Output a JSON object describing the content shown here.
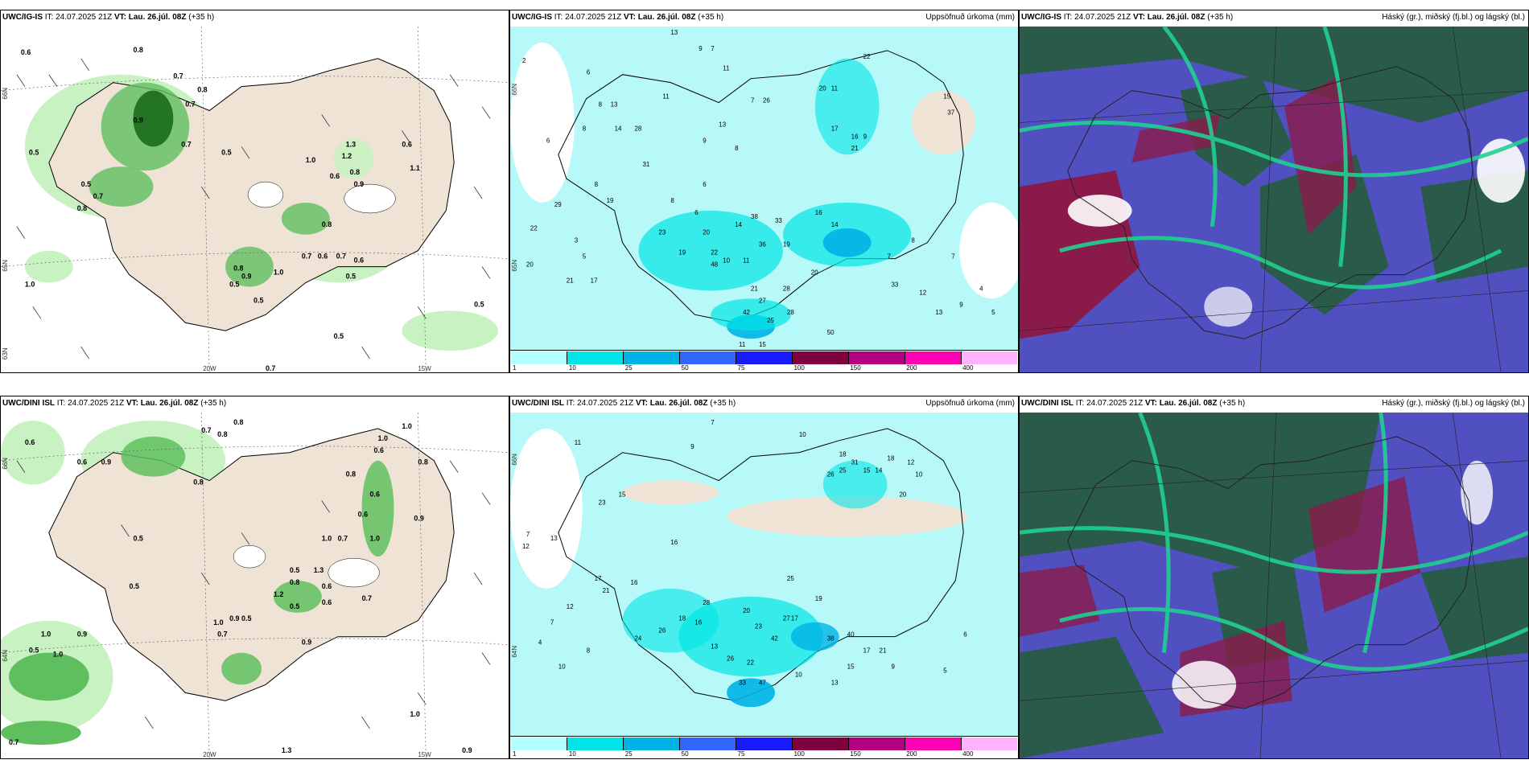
{
  "panels": {
    "top_left": {
      "model": "UWC/IG-IS",
      "it_label": "IT:",
      "it_value": "24.07.2025 21Z",
      "vt_label": "VT:",
      "vt_value": "Lau. 26.júl. 08Z",
      "lead": "(+35 h)",
      "lat_labels": [
        "66N",
        "65N",
        "63N"
      ],
      "lon_labels": [
        "20W",
        "15W"
      ],
      "values": [
        "0.6",
        "0.8",
        "0.7",
        "0.7",
        "0.8",
        "0.5",
        "0.9",
        "0.7",
        "0.5",
        "0.5",
        "0.7",
        "0.8",
        "1.0",
        "1.3",
        "1.2",
        "0.6",
        "0.8",
        "0.9",
        "0.6",
        "1.1",
        "0.8",
        "0.7",
        "0.6",
        "0.7",
        "0.6",
        "0.5",
        "0.8",
        "0.9",
        "1.0",
        "0.5",
        "1.0",
        "0.5",
        "0.5",
        "0.7",
        "0.5"
      ]
    },
    "top_mid": {
      "model": "UWC/IG-IS",
      "it_label": "IT:",
      "it_value": "24.07.2025 21Z",
      "vt_label": "VT:",
      "vt_value": "Lau. 26.júl. 08Z",
      "lead": "(+35 h)",
      "right_title": "Uppsöfnuð úrkoma (mm)",
      "lat_labels": [
        "66N",
        "65N"
      ],
      "numbers": [
        "13",
        "2",
        "9",
        "7",
        "6",
        "11",
        "22",
        "6",
        "8",
        "13",
        "8",
        "14",
        "11",
        "8",
        "19",
        "13",
        "9",
        "8",
        "7",
        "26",
        "28",
        "31",
        "20",
        "11",
        "17",
        "16",
        "9",
        "21",
        "15",
        "37",
        "38",
        "14",
        "6",
        "8",
        "20",
        "23",
        "19",
        "22",
        "11",
        "10",
        "33",
        "19",
        "16",
        "14",
        "48",
        "36",
        "20",
        "21",
        "28",
        "27",
        "42",
        "25",
        "50",
        "28",
        "33",
        "11",
        "15",
        "29",
        "22",
        "17",
        "20",
        "21",
        "3",
        "5",
        "12",
        "7",
        "4",
        "5",
        "13",
        "9",
        "8",
        "7",
        "6"
      ]
    },
    "top_right": {
      "model": "UWC/IG-IS",
      "it_label": "IT:",
      "it_value": "24.07.2025 21Z",
      "vt_label": "VT:",
      "vt_value": "Lau. 26.júl. 08Z",
      "lead": "(+35 h)",
      "right_title": "Háský (gr.), miðský (fj.bl.) og lágský (bl.)"
    },
    "bottom_left": {
      "model": "UWC/DINI ISL",
      "it_label": "IT:",
      "it_value": "24.07.2025 21Z",
      "vt_label": "VT:",
      "vt_value": "Lau. 26.júl. 08Z",
      "lead": "(+35 h)",
      "lat_labels": [
        "66N",
        "64N"
      ],
      "lon_labels": [
        "20W",
        "15W"
      ],
      "values": [
        "0.6",
        "0.7",
        "0.8",
        "0.8",
        "0.6",
        "0.9",
        "0.8",
        "1.0",
        "0.6",
        "1.0",
        "0.8",
        "0.8",
        "0.6",
        "1.0",
        "0.5",
        "0.9",
        "0.6",
        "0.7",
        "1.0",
        "0.5",
        "0.5",
        "1.3",
        "0.8",
        "0.6",
        "0.7",
        "0.6",
        "1.2",
        "0.5",
        "1.0",
        "0.9",
        "0.5",
        "0.9",
        "0.7",
        "1.0",
        "0.5",
        "1.0",
        "0.9",
        "1.0",
        "0.7",
        "1.3",
        "0.9"
      ]
    },
    "bottom_mid": {
      "model": "UWC/DINI ISL",
      "it_label": "IT:",
      "it_value": "24.07.2025 21Z",
      "vt_label": "VT:",
      "vt_value": "Lau. 26.júl. 08Z",
      "lead": "(+35 h)",
      "right_title": "Uppsöfnuð úrkoma (mm)",
      "lat_labels": [
        "66N",
        "64N"
      ],
      "numbers": [
        "11",
        "7",
        "9",
        "10",
        "12",
        "23",
        "15",
        "7",
        "13",
        "17",
        "21",
        "16",
        "18",
        "31",
        "25",
        "15",
        "14",
        "18",
        "26",
        "20",
        "28",
        "12",
        "10",
        "16",
        "25",
        "19",
        "17",
        "18",
        "16",
        "26",
        "20",
        "27",
        "38",
        "23",
        "40",
        "24",
        "13",
        "42",
        "26",
        "22",
        "33",
        "47",
        "17",
        "21",
        "15",
        "10",
        "9",
        "13",
        "5",
        "6",
        "4",
        "7",
        "10",
        "12",
        "8"
      ]
    },
    "bottom_right": {
      "model": "UWC/DINI ISL",
      "it_label": "IT:",
      "it_value": "24.07.2025 21Z",
      "vt_label": "VT:",
      "vt_value": "Lau. 26.júl. 08Z",
      "lead": "(+35 h)",
      "right_title": "Háský (gr.), miðský (fj.bl.) og lágský (bl.)"
    }
  },
  "colorbar": {
    "labels": [
      "1",
      "10",
      "25",
      "50",
      "75",
      "100",
      "150",
      "200",
      "400"
    ],
    "colors": [
      "#b3ffff",
      "#00e6e6",
      "#00b3e6",
      "#3366ff",
      "#1a1aff",
      "#800040",
      "#b30080",
      "#ff00b3",
      "#ffb3ff"
    ]
  },
  "colors": {
    "land": "#efe3d6",
    "sea_precip": "#b7f8f8",
    "green_light": "#c9f2c2",
    "green_mid": "#5fbf5f",
    "green_dark": "#1a6a1a",
    "cloud_high": "#2a5a4a",
    "cloud_mid": "#5050c0",
    "cloud_low": "#8a1a4a",
    "cloud_edge": "#20d090"
  }
}
